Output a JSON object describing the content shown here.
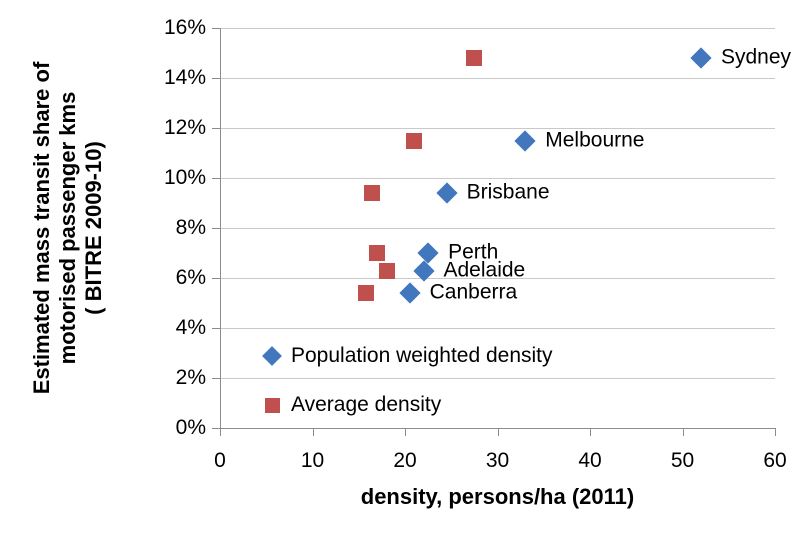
{
  "chart_data": {
    "type": "scatter",
    "title": "",
    "xlabel": "density, persons/ha (2011)",
    "ylabel_lines": [
      "Estimated mass transit share of",
      "motorised passenger kms",
      "( BITRE 2009-10)"
    ],
    "xlim": [
      0,
      60
    ],
    "ylim_pct": [
      0,
      16
    ],
    "x_ticks": [
      0,
      10,
      20,
      30,
      40,
      50,
      60
    ],
    "y_ticks_pct": [
      0,
      2,
      4,
      6,
      8,
      10,
      12,
      14,
      16
    ],
    "y_tick_suffix": "%",
    "grid": "horizontal gridlines, light gray",
    "legend_position": "inside plot, bottom-left",
    "legend": [
      {
        "label": "Population weighted density",
        "marker": "diamond",
        "color": "#4276bd"
      },
      {
        "label": "Average density",
        "marker": "square",
        "color": "#c0504d"
      }
    ],
    "cities": [
      {
        "name": "Sydney",
        "transit_share_pct": 14.8,
        "pop_weighted_density": 52.0,
        "average_density": 27.5
      },
      {
        "name": "Melbourne",
        "transit_share_pct": 11.5,
        "pop_weighted_density": 33.0,
        "average_density": 21.0
      },
      {
        "name": "Brisbane",
        "transit_share_pct": 9.4,
        "pop_weighted_density": 24.5,
        "average_density": 16.4
      },
      {
        "name": "Perth",
        "transit_share_pct": 7.0,
        "pop_weighted_density": 22.5,
        "average_density": 17.0
      },
      {
        "name": "Adelaide",
        "transit_share_pct": 6.3,
        "pop_weighted_density": 22.0,
        "average_density": 18.0
      },
      {
        "name": "Canberra",
        "transit_share_pct": 5.4,
        "pop_weighted_density": 20.5,
        "average_density": 15.8
      }
    ],
    "colors": {
      "series_blue": "#4276bd",
      "series_red": "#c0504d",
      "gridline": "#c9c9c9",
      "axis": "#8c8c8c",
      "text": "#000000"
    }
  }
}
